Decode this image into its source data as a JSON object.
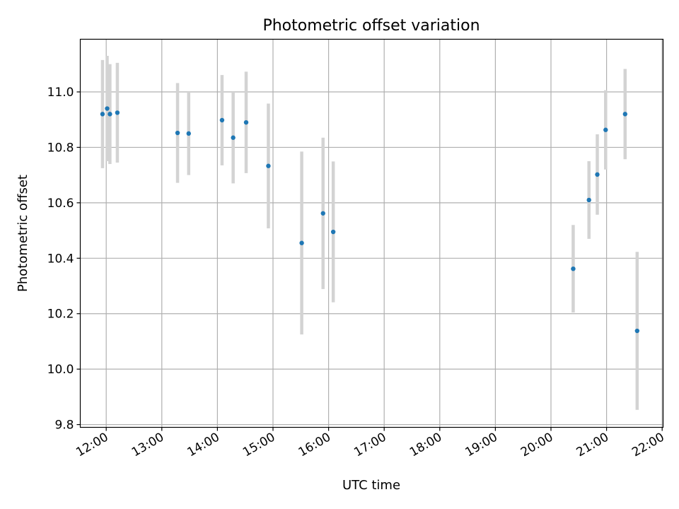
{
  "chart_data": {
    "type": "scatter",
    "title": "Photometric offset variation",
    "xlabel": "UTC time",
    "ylabel": "Photometric offset",
    "x_format": "HH:MM",
    "xlim": [
      "11:32",
      "22:01"
    ],
    "ylim": [
      9.79,
      11.19
    ],
    "grid": true,
    "x_ticks": [
      "12:00",
      "13:00",
      "14:00",
      "15:00",
      "16:00",
      "17:00",
      "18:00",
      "19:00",
      "20:00",
      "21:00",
      "22:00"
    ],
    "y_ticks": [
      9.8,
      10.0,
      10.2,
      10.4,
      10.6,
      10.8,
      11.0
    ],
    "y_tick_labels": [
      "9.8",
      "10.0",
      "10.2",
      "10.4",
      "10.6",
      "10.8",
      "11.0"
    ],
    "colors": {
      "points": "#1f77b4",
      "errorbars": "#d3d3d3",
      "grid": "#b0b0b0"
    },
    "points": [
      {
        "x": "11:56",
        "y": 10.92,
        "yerr": 0.195
      },
      {
        "x": "12:01",
        "y": 10.94,
        "yerr": 0.19
      },
      {
        "x": "12:04",
        "y": 10.92,
        "yerr": 0.18
      },
      {
        "x": "12:12",
        "y": 10.925,
        "yerr": 0.18
      },
      {
        "x": "13:17",
        "y": 10.852,
        "yerr": 0.18
      },
      {
        "x": "13:29",
        "y": 10.85,
        "yerr": 0.15
      },
      {
        "x": "14:05",
        "y": 10.898,
        "yerr": 0.163
      },
      {
        "x": "14:17",
        "y": 10.835,
        "yerr": 0.165
      },
      {
        "x": "14:31",
        "y": 10.89,
        "yerr": 0.183
      },
      {
        "x": "14:55",
        "y": 10.733,
        "yerr": 0.225
      },
      {
        "x": "15:31",
        "y": 10.455,
        "yerr": 0.33
      },
      {
        "x": "15:54",
        "y": 10.562,
        "yerr": 0.273
      },
      {
        "x": "16:05",
        "y": 10.495,
        "yerr": 0.254
      },
      {
        "x": "20:24",
        "y": 10.362,
        "yerr": 0.158
      },
      {
        "x": "20:41",
        "y": 10.61,
        "yerr": 0.14
      },
      {
        "x": "20:50",
        "y": 10.702,
        "yerr": 0.145
      },
      {
        "x": "20:59",
        "y": 10.863,
        "yerr": 0.143
      },
      {
        "x": "21:20",
        "y": 10.92,
        "yerr": 0.163
      },
      {
        "x": "21:33",
        "y": 10.138,
        "yerr": 0.285
      }
    ]
  }
}
